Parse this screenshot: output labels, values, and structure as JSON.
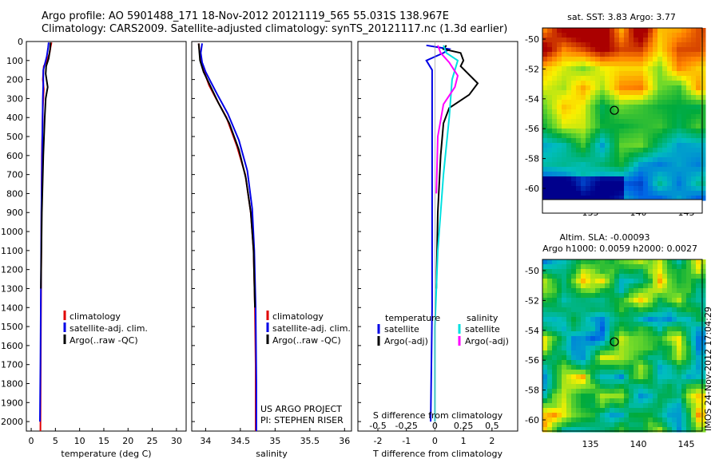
{
  "header": {
    "line1": "Argo profile: AO 5901488_171 18-Nov-2012 20121119_565 55.031S 138.967E",
    "line2": "Climatology: CARS2009. Satellite-adjusted climatology: synTS_20121117.nc (1.3d earlier)"
  },
  "colors": {
    "climatology": "#e00000",
    "satellite": "#0000e6",
    "argo": "#000000",
    "salinity_sat": "#00e0e0",
    "salinity_argo": "#ff00ff"
  },
  "depth_axis": {
    "ticks": [
      0,
      100,
      200,
      300,
      400,
      500,
      600,
      700,
      800,
      900,
      1000,
      1100,
      1200,
      1300,
      1400,
      1500,
      1600,
      1700,
      1800,
      1900,
      2000
    ],
    "range": [
      0,
      2050
    ]
  },
  "chart_data": [
    {
      "type": "line",
      "xlabel": "temperature (deg C)",
      "xlim": [
        -1,
        32
      ],
      "xticks": [
        "0",
        "5",
        "10",
        "15",
        "20",
        "25",
        "30"
      ],
      "xtick_values": [
        0,
        5,
        10,
        15,
        20,
        25,
        30
      ],
      "legend": [
        "climatology",
        "satellite-adj. clim.",
        "Argo(..raw -QC)"
      ],
      "series": [
        {
          "name": "climatology",
          "color": "#e00000",
          "points": [
            [
              4.2,
              5
            ],
            [
              4.0,
              30
            ],
            [
              3.8,
              60
            ],
            [
              3.3,
              100
            ],
            [
              2.6,
              130
            ],
            [
              2.4,
              200
            ],
            [
              2.6,
              250
            ],
            [
              2.4,
              350
            ],
            [
              2.2,
              600
            ],
            [
              2.1,
              1000
            ],
            [
              2.0,
              1500
            ],
            [
              1.9,
              2050
            ]
          ]
        },
        {
          "name": "satellite-adj. clim.",
          "color": "#0000e6",
          "points": [
            [
              3.6,
              5
            ],
            [
              3.5,
              30
            ],
            [
              3.2,
              80
            ],
            [
              2.8,
              120
            ],
            [
              2.5,
              150
            ],
            [
              2.5,
              220
            ],
            [
              2.4,
              300
            ],
            [
              2.3,
              500
            ],
            [
              2.1,
              900
            ],
            [
              2.0,
              1300
            ],
            [
              1.9,
              1700
            ],
            [
              1.8,
              2000
            ]
          ]
        },
        {
          "name": "Argo(..raw -QC)",
          "color": "#000000",
          "points": [
            [
              4.0,
              5
            ],
            [
              3.9,
              40
            ],
            [
              3.6,
              90
            ],
            [
              3.1,
              130
            ],
            [
              3.0,
              170
            ],
            [
              3.4,
              240
            ],
            [
              3.0,
              300
            ],
            [
              2.8,
              400
            ],
            [
              2.5,
              600
            ],
            [
              2.2,
              900
            ],
            [
              2.0,
              1300
            ]
          ]
        }
      ]
    },
    {
      "type": "line",
      "xlabel": "salinity",
      "xlim": [
        33.8,
        36.1
      ],
      "xticks": [
        "34",
        "34.5",
        "35",
        "35.5",
        "36"
      ],
      "xtick_values": [
        34,
        34.5,
        35,
        35.5,
        36
      ],
      "legend": [
        "climatology",
        "satellite-adj. clim.",
        "Argo(..raw -QC)"
      ],
      "notes": [
        "US ARGO PROJECT",
        "PI: STEPHEN RISER"
      ],
      "series": [
        {
          "name": "climatology",
          "color": "#e00000",
          "points": [
            [
              33.9,
              10
            ],
            [
              33.92,
              80
            ],
            [
              33.95,
              130
            ],
            [
              34.0,
              180
            ],
            [
              34.05,
              230
            ],
            [
              34.15,
              300
            ],
            [
              34.3,
              400
            ],
            [
              34.45,
              550
            ],
            [
              34.57,
              700
            ],
            [
              34.65,
              900
            ],
            [
              34.69,
              1100
            ],
            [
              34.71,
              1400
            ],
            [
              34.72,
              1700
            ],
            [
              34.72,
              2050
            ]
          ]
        },
        {
          "name": "satellite-adj. clim.",
          "color": "#0000e6",
          "points": [
            [
              33.95,
              10
            ],
            [
              33.93,
              60
            ],
            [
              33.95,
              110
            ],
            [
              34.0,
              160
            ],
            [
              34.07,
              210
            ],
            [
              34.17,
              280
            ],
            [
              34.32,
              380
            ],
            [
              34.48,
              520
            ],
            [
              34.6,
              680
            ],
            [
              34.67,
              880
            ],
            [
              34.7,
              1100
            ],
            [
              34.72,
              1400
            ],
            [
              34.73,
              1800
            ],
            [
              34.73,
              2050
            ]
          ]
        },
        {
          "name": "Argo(..raw -QC)",
          "color": "#000000",
          "points": [
            [
              33.9,
              10
            ],
            [
              33.92,
              100
            ],
            [
              33.97,
              160
            ],
            [
              34.05,
              220
            ],
            [
              34.18,
              320
            ],
            [
              34.34,
              430
            ],
            [
              34.48,
              570
            ],
            [
              34.58,
              720
            ],
            [
              34.65,
              900
            ],
            [
              34.69,
              1100
            ],
            [
              34.71,
              1400
            ]
          ]
        }
      ]
    },
    {
      "type": "line",
      "xlabel": "T difference from climatology",
      "xlabel_top": "S difference from climatology",
      "xlim": [
        -2.7,
        2.9
      ],
      "xticks": [
        "-2",
        "-1",
        "0",
        "1",
        "2"
      ],
      "xtick_values": [
        -2,
        -1,
        0,
        1,
        2
      ],
      "xticks_top": [
        "-0.5",
        "-0.25",
        "0",
        "0.25",
        "0.5"
      ],
      "xtick_top_values": [
        -2,
        -1,
        0,
        1,
        2
      ],
      "legend_temperature_title": "temperature",
      "legend_salinity_title": "salinity",
      "legend_temperature": [
        "satellite",
        "Argo(-adj)"
      ],
      "legend_salinity": [
        "satellite",
        "Argo(-adj)"
      ],
      "series": [
        {
          "name": "T satellite",
          "color": "#0000e6",
          "points": [
            [
              -0.3,
              20
            ],
            [
              0.5,
              40
            ],
            [
              0.3,
              60
            ],
            [
              -0.3,
              100
            ],
            [
              -0.1,
              150
            ],
            [
              -0.1,
              300
            ],
            [
              -0.1,
              800
            ],
            [
              -0.1,
              1400
            ],
            [
              -0.15,
              2000
            ]
          ]
        },
        {
          "name": "T Argo(-adj)",
          "color": "#000000",
          "points": [
            [
              0.4,
              20
            ],
            [
              0.3,
              40
            ],
            [
              0.9,
              60
            ],
            [
              1.0,
              100
            ],
            [
              0.9,
              130
            ],
            [
              1.5,
              220
            ],
            [
              1.2,
              280
            ],
            [
              0.5,
              350
            ],
            [
              0.3,
              430
            ],
            [
              0.2,
              600
            ],
            [
              0.1,
              900
            ],
            [
              0.05,
              1300
            ]
          ]
        },
        {
          "name": "S satellite",
          "color": "#00e0e0",
          "points": [
            [
              0.3,
              20
            ],
            [
              0.4,
              60
            ],
            [
              0.8,
              100
            ],
            [
              0.6,
              200
            ],
            [
              0.5,
              400
            ],
            [
              0.3,
              700
            ],
            [
              0.1,
              1100
            ],
            [
              0.0,
              1500
            ],
            [
              0.0,
              2000
            ]
          ]
        },
        {
          "name": "S Argo(-adj)",
          "color": "#ff00ff",
          "points": [
            [
              0.1,
              20
            ],
            [
              0.2,
              60
            ],
            [
              0.5,
              110
            ],
            [
              0.8,
              180
            ],
            [
              0.7,
              240
            ],
            [
              0.3,
              330
            ],
            [
              0.1,
              500
            ],
            [
              0.05,
              800
            ]
          ]
        }
      ]
    }
  ],
  "maps": {
    "sst": {
      "title": "sat. SST: 3.83 Argo: 3.77",
      "yticks": [
        "-50",
        "-52",
        "-54",
        "-56",
        "-58",
        "-60"
      ],
      "xticks": [
        "135",
        "140",
        "145"
      ]
    },
    "sla": {
      "title1": "Altim. SLA: -0.00093",
      "title2": "Argo h1000: 0.0059 h2000: 0.0027",
      "yticks": [
        "-50",
        "-52",
        "-54",
        "-56",
        "-58",
        "-60"
      ],
      "xticks": [
        "135",
        "140",
        "145"
      ]
    },
    "stamp": "IMOS 24-Nov-2012 17:04:29"
  }
}
